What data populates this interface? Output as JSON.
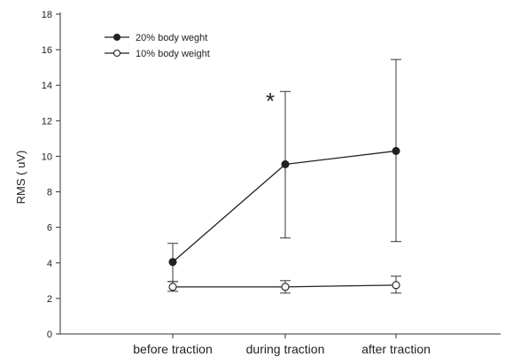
{
  "chart_data": {
    "type": "line",
    "title": "",
    "xlabel": "",
    "ylabel": "RMS ( uV)",
    "ylim": [
      0,
      18
    ],
    "yticks": [
      0,
      2,
      4,
      6,
      8,
      10,
      12,
      14,
      16,
      18
    ],
    "categories": [
      "before traction",
      "during traction",
      "after traction"
    ],
    "series": [
      {
        "name": "20% body weght",
        "marker": "filled-circle",
        "color": "#222222",
        "values": [
          4.05,
          9.55,
          10.3
        ],
        "err_upper": [
          5.1,
          13.65,
          15.45
        ],
        "err_lower": [
          2.95,
          5.4,
          5.2
        ]
      },
      {
        "name": "10% body weight",
        "marker": "open-circle",
        "color": "#222222",
        "values": [
          2.65,
          2.65,
          2.75
        ],
        "err_upper": [
          2.95,
          3.0,
          3.25
        ],
        "err_lower": [
          2.4,
          2.3,
          2.3
        ]
      }
    ],
    "annotations": [
      {
        "text": "*",
        "category": "during traction"
      }
    ],
    "legend_position": "top-left",
    "grid": false
  }
}
